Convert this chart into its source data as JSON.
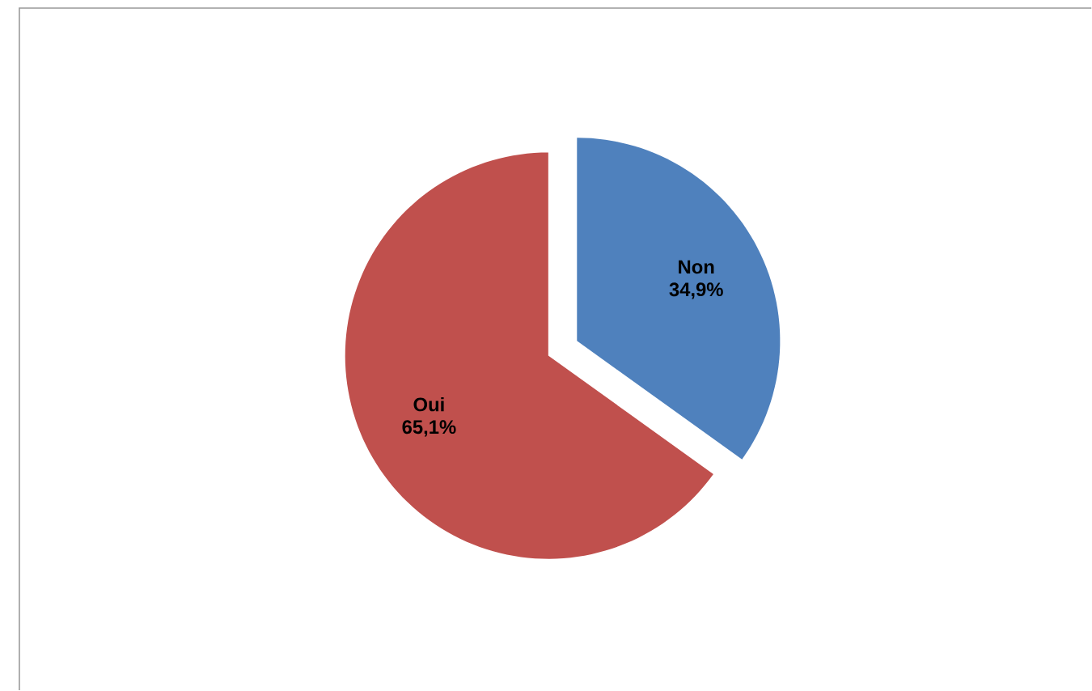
{
  "chart_data": {
    "type": "pie",
    "categories": [
      "Non",
      "Oui"
    ],
    "values": [
      34.9,
      65.1
    ],
    "colors": [
      "#4f81bd",
      "#c0504d"
    ],
    "value_labels": [
      "34,9%",
      "65,1%"
    ]
  }
}
